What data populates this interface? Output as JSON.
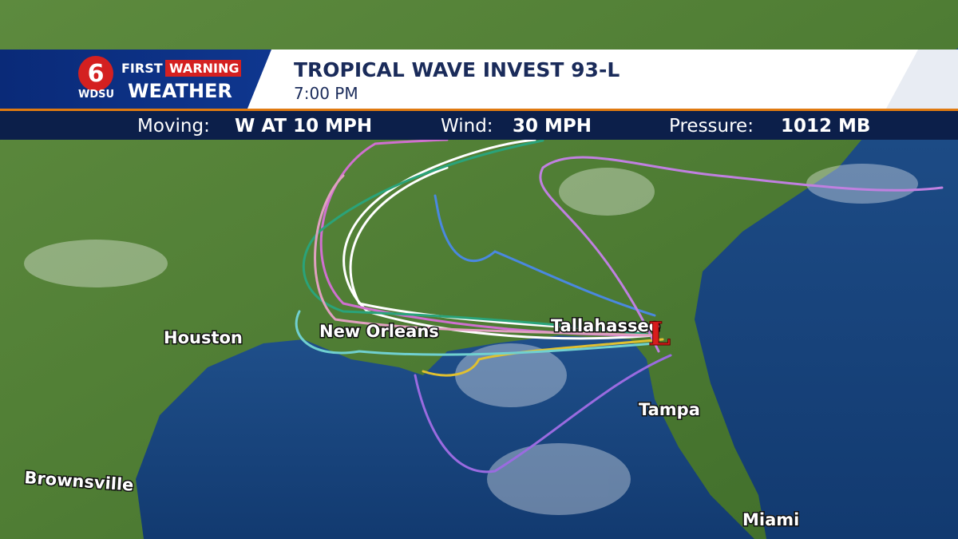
{
  "logo": {
    "number": "6",
    "first": "FIRST",
    "warning": "WARNING",
    "station": "WDSU",
    "weather": "WEATHER"
  },
  "header": {
    "title": "TROPICAL WAVE INVEST 93-L",
    "time": "7:00 PM"
  },
  "stats": [
    {
      "label": "Moving:",
      "value": "W AT 10 MPH"
    },
    {
      "label": "Wind:",
      "value": "30 MPH"
    },
    {
      "label": "Pressure:",
      "value": "1012 MB"
    }
  ],
  "cities": [
    "Houston",
    "New Orleans",
    "Tallahassee",
    "Tampa",
    "Miami",
    "Brownsville"
  ],
  "low_marker": "L"
}
